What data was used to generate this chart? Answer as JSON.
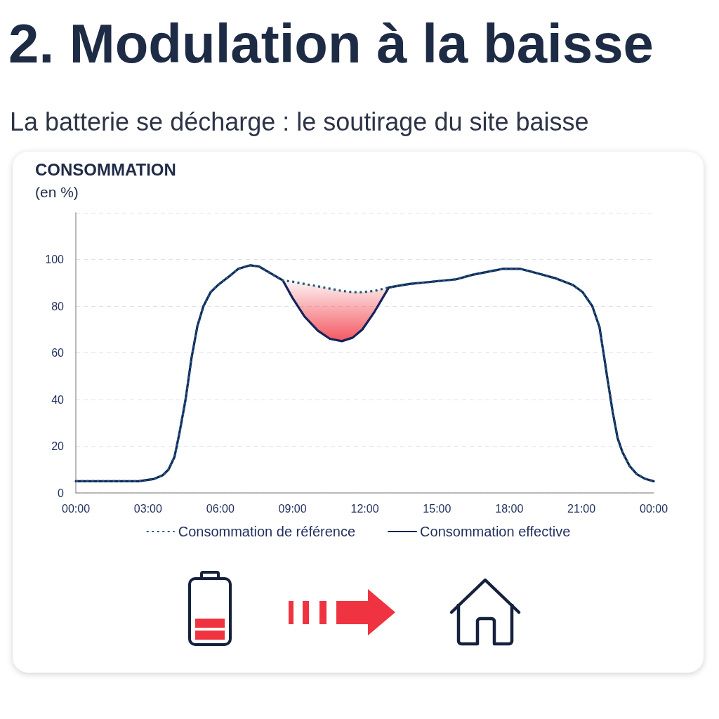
{
  "chart_data": {
    "type": "line",
    "title": "2. Modulation à la baisse",
    "subtitle": "La batterie se décharge : le soutirage du site baisse",
    "ylabel": "CONSOMMATION\n(en %)",
    "x": [
      0,
      1,
      2,
      2.6,
      3.25,
      3.6,
      3.85,
      4.1,
      4.3,
      4.55,
      4.8,
      5.05,
      5.3,
      5.6,
      5.9,
      6.4,
      6.75,
      7.25,
      7.6,
      8.1,
      8.6,
      9.0,
      9.5,
      10.05,
      10.55,
      11.05,
      11.5,
      11.9,
      12.4,
      13.0,
      13.85,
      14.35,
      15.8,
      16.5,
      17.25,
      17.75,
      18.45,
      19.2,
      19.9,
      20.65,
      21.05,
      21.45,
      21.75,
      21.9,
      22.1,
      22.3,
      22.5,
      22.7,
      23.0,
      23.3,
      23.65,
      24
    ],
    "xlim": [
      0,
      24
    ],
    "xticks": [
      {
        "value": 0,
        "label": "00:00"
      },
      {
        "value": 3,
        "label": "03:00"
      },
      {
        "value": 6,
        "label": "06:00"
      },
      {
        "value": 9,
        "label": "09:00"
      },
      {
        "value": 12,
        "label": "12:00"
      },
      {
        "value": 15,
        "label": "15:00"
      },
      {
        "value": 18,
        "label": "18:00"
      },
      {
        "value": 21,
        "label": "21:00"
      },
      {
        "value": 24,
        "label": "00:00"
      }
    ],
    "ylim": [
      0,
      120
    ],
    "yticks": [
      0,
      20,
      40,
      60,
      80,
      100,
      {
        "value": 120,
        "label": null
      }
    ],
    "grid": "y",
    "legend": "bottom",
    "marker": "none",
    "series": [
      {
        "color": "#f2444f",
        "x": [
          8.6,
          9.0,
          9.5,
          10.05,
          10.55,
          11.05,
          11.5,
          11.9,
          12.4,
          13.0
        ],
        "values": [
          null,
          null,
          null,
          null,
          null,
          null,
          null,
          null,
          null,
          null
        ],
        "lower": [
          91,
          83.5,
          75.5,
          69.5,
          66,
          65,
          66.5,
          70,
          77.5,
          88
        ],
        "upper": [
          91,
          90.5,
          89.5,
          88.5,
          87.5,
          86.5,
          86,
          86,
          86.5,
          88
        ]
      },
      {
        "name": "Consommation de référence",
        "color": "#1d5b76",
        "line_style": "dotted",
        "values": [
          5,
          5,
          5,
          5,
          6,
          7.5,
          10,
          15.5,
          25.5,
          39.5,
          57.5,
          71.5,
          80,
          86,
          89,
          93,
          96,
          97.5,
          97,
          94,
          91,
          90.5,
          89.5,
          88.5,
          87.5,
          86.5,
          86,
          86,
          86.5,
          88,
          89.5,
          90,
          91.5,
          93.5,
          95,
          96,
          96,
          94,
          92,
          89,
          86,
          80,
          71,
          61,
          47.5,
          34.5,
          23.5,
          17.5,
          11.5,
          8,
          6,
          5
        ]
      },
      {
        "name": "Consommation effective",
        "color": "#14245c",
        "line_style": "solid",
        "values": [
          5,
          5,
          5,
          5,
          6,
          7.5,
          10,
          15.5,
          25.5,
          39.5,
          57.5,
          71.5,
          80,
          86,
          89,
          93,
          96,
          97.5,
          97,
          94,
          91,
          83.5,
          75.5,
          69.5,
          66,
          65,
          66.5,
          70,
          77.5,
          88,
          89.5,
          90,
          91.5,
          93.5,
          95,
          96,
          96,
          94,
          92,
          89,
          86,
          80,
          71,
          61,
          47.5,
          34.5,
          23.5,
          17.5,
          11.5,
          8,
          6,
          5
        ]
      }
    ]
  }
}
